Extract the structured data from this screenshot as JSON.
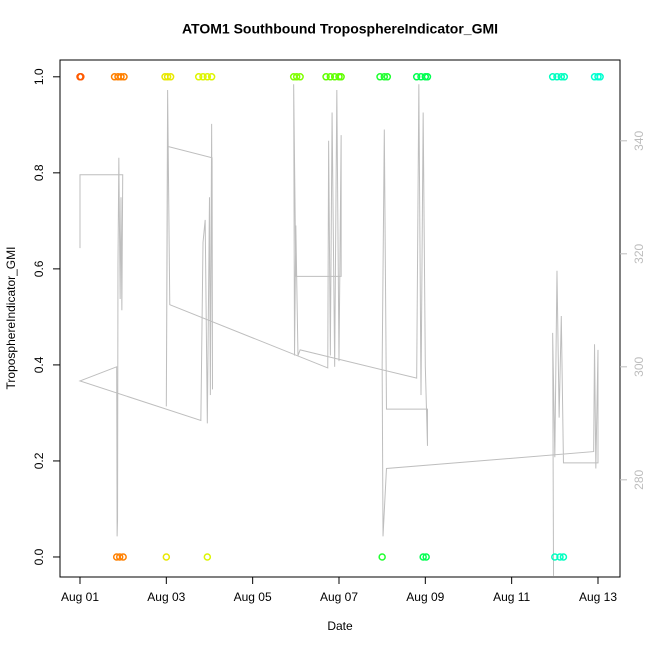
{
  "chart_data": {
    "type": "scatter",
    "title": "ATOM1 Southbound TroposphereIndicator_GMI",
    "xlabel": "Date",
    "ylabel": "TroposphereIndicator_GMI",
    "xlim": [
      -0.463,
      12.51
    ],
    "ylim": [
      -0.0417,
      1.035
    ],
    "y2lim": [
      262.8,
      354.3
    ],
    "xticks": [
      {
        "value": 0,
        "label": "Aug 01"
      },
      {
        "value": 2,
        "label": "Aug 03"
      },
      {
        "value": 4,
        "label": "Aug 05"
      },
      {
        "value": 6,
        "label": "Aug 07"
      },
      {
        "value": 8,
        "label": "Aug 09"
      },
      {
        "value": 10,
        "label": "Aug 11"
      },
      {
        "value": 12,
        "label": "Aug 13"
      }
    ],
    "yticks": [
      {
        "value": 0,
        "label": "0.0"
      },
      0.2,
      0.4,
      0.6,
      0.8,
      {
        "value": 1,
        "label": "1.0"
      }
    ],
    "y2ticks": [
      280,
      300,
      320,
      340
    ],
    "series": [
      {
        "type": "scatter",
        "x": [
          0.0,
          0.02,
          0.8,
          0.88,
          0.95,
          1.02,
          0.85,
          0.92,
          1.0,
          1.97,
          2.03,
          2.1,
          2.0,
          2.75,
          2.85,
          2.95,
          3.05,
          2.95,
          4.95,
          5.02,
          5.1,
          5.7,
          5.8,
          5.9,
          6.0,
          6.05,
          6.95,
          7.05,
          7.12,
          7.0,
          7.8,
          7.9,
          8.0,
          8.05,
          7.95,
          8.02,
          10.95,
          11.05,
          11.15,
          11.22,
          11.0,
          11.12,
          11.2,
          11.92,
          12.0,
          12.05
        ],
        "values": [
          1,
          1,
          1,
          1,
          1,
          1,
          0,
          0,
          0,
          1,
          1,
          1,
          0,
          1,
          1,
          1,
          1,
          0,
          1,
          1,
          1,
          1,
          1,
          1,
          1,
          1,
          1,
          1,
          1,
          0,
          1,
          1,
          1,
          1,
          0,
          0,
          1,
          1,
          1,
          1,
          0,
          0,
          0,
          1,
          1,
          1
        ],
        "colors": [
          "#FF5A00",
          "#FF5A00",
          "#FF8000",
          "#FF8000",
          "#FF8000",
          "#FF8000",
          "#FF8000",
          "#FF8000",
          "#FF8000",
          "#E8E800",
          "#E8E800",
          "#E8E800",
          "#E8E800",
          "#DDF500",
          "#DDF500",
          "#DDF500",
          "#DDF500",
          "#DDF500",
          "#80FF00",
          "#80FF00",
          "#80FF00",
          "#60FF00",
          "#60FF00",
          "#60FF00",
          "#60FF00",
          "#60FF00",
          "#20FF30",
          "#20FF30",
          "#20FF30",
          "#20FF30",
          "#00FF50",
          "#00FF50",
          "#00FF50",
          "#00FF50",
          "#00FF50",
          "#00FF50",
          "#00FFC0",
          "#00FFC0",
          "#00FFC0",
          "#00FFC0",
          "#00FFC0",
          "#00FFC0",
          "#00FFC0",
          "#00FFD0",
          "#00FFD0",
          "#00FFD0"
        ]
      },
      {
        "type": "line",
        "axis": "y2",
        "color": "#bebebe",
        "x": [
          0,
          0,
          0.99,
          0.97,
          0.95,
          0.93,
          0.9,
          0.88,
          0.87,
          0.86,
          0.85,
          0,
          2.8,
          2.85,
          2.9,
          2.95,
          3.0,
          3.02,
          3.05,
          3.07,
          3.06,
          2.03,
          2.0,
          2.03,
          2.08,
          5.74,
          5.76,
          5.8,
          5.84,
          5.9,
          5.95,
          6.0,
          6.05,
          6.05,
          5.0,
          4.95,
          4.97,
          5.0,
          5.05,
          5.1,
          7.8,
          7.85,
          7.9,
          7.95,
          8.0,
          8.05,
          8.05,
          7.1,
          7.05,
          7.0,
          7.02,
          7.1,
          11.9,
          11.92,
          11.95,
          12.0,
          12.0,
          11.2,
          11.15,
          11.1,
          11.05,
          11.0,
          10.95,
          10.97
        ],
        "values": [
          321,
          334,
          334,
          310,
          330,
          312,
          337,
          318,
          273,
          270,
          300,
          297.5,
          290.5,
          322,
          326,
          290,
          330,
          295,
          343,
          296,
          337,
          339,
          293,
          349,
          311,
          299.8,
          340,
          302,
          345,
          300,
          349,
          301,
          341,
          316,
          316,
          350,
          302,
          325,
          302,
          303,
          298,
          350,
          295,
          345,
          300,
          286,
          292.5,
          292.5,
          342,
          300,
          270,
          282,
          285,
          304,
          282,
          303,
          283,
          283,
          309,
          291,
          317,
          284,
          306,
          263
        ]
      }
    ]
  }
}
